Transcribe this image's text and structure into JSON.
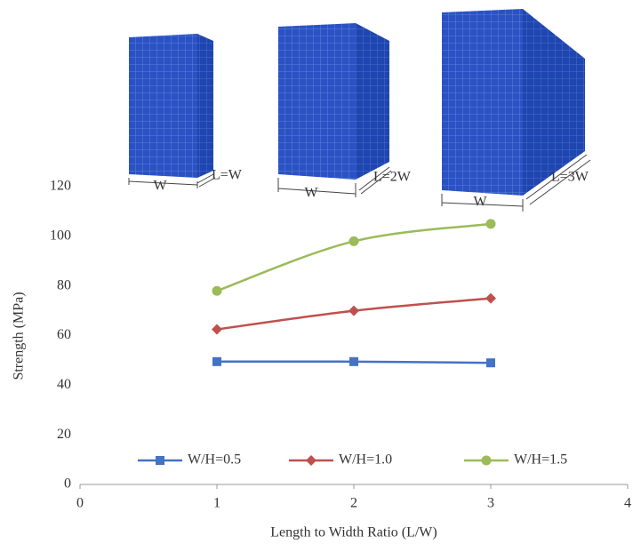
{
  "illustration": {
    "labels": [
      "W",
      "L=W",
      "W",
      "L=2W",
      "W",
      "L=3W"
    ]
  },
  "chart_data": {
    "type": "line",
    "x_label": "Length to Width Ratio (L/W)",
    "y_label": "Strength (MPa)",
    "x": [
      1,
      2,
      3
    ],
    "series": [
      {
        "name": "W/H=0.5",
        "color": "#4472c4",
        "marker": "square",
        "values": [
          49.5,
          49.5,
          49
        ]
      },
      {
        "name": "W/H=1.0",
        "color": "#c0504d",
        "marker": "diamond",
        "values": [
          62.5,
          70,
          75
        ]
      },
      {
        "name": "W/H=1.5",
        "color": "#9bbb59",
        "marker": "circle",
        "values": [
          78,
          98,
          105
        ]
      }
    ],
    "xlim": [
      0,
      4
    ],
    "xticks": [
      0,
      1,
      2,
      3,
      4
    ],
    "ylim": [
      0,
      120
    ],
    "yticks": [
      0,
      20,
      40,
      60,
      80,
      100,
      120
    ],
    "grid": false,
    "legend": "bottom"
  }
}
